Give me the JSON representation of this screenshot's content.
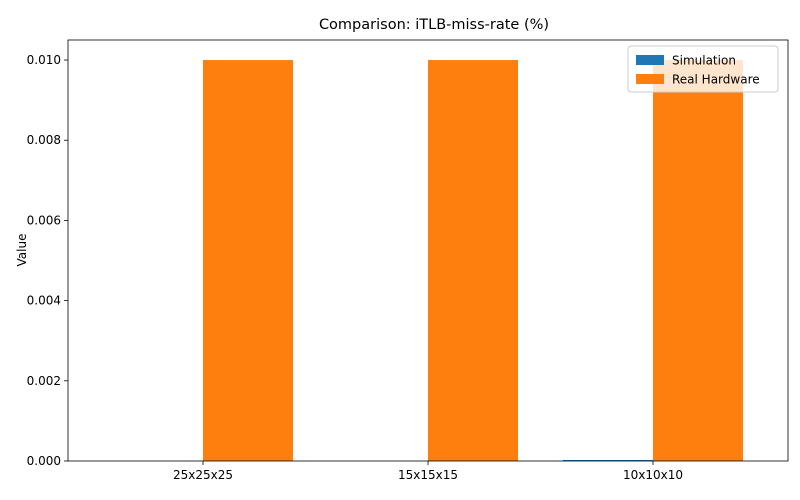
{
  "chart_data": {
    "type": "bar",
    "title": "Comparison: iTLB-miss-rate (%)",
    "xlabel": "",
    "ylabel": "Value",
    "categories": [
      "25x25x25",
      "15x15x15",
      "10x10x10"
    ],
    "series": [
      {
        "name": "Simulation",
        "values": [
          0.0,
          0.0,
          2e-05
        ],
        "color": "#1f77b4"
      },
      {
        "name": "Real Hardware",
        "values": [
          0.01,
          0.01,
          0.01
        ],
        "color": "#ff7f0e"
      }
    ],
    "ylim": [
      0,
      0.0105
    ],
    "yticks": [
      "0.000",
      "0.002",
      "0.004",
      "0.006",
      "0.008",
      "0.010"
    ],
    "grid": false,
    "legend": "top-right"
  }
}
